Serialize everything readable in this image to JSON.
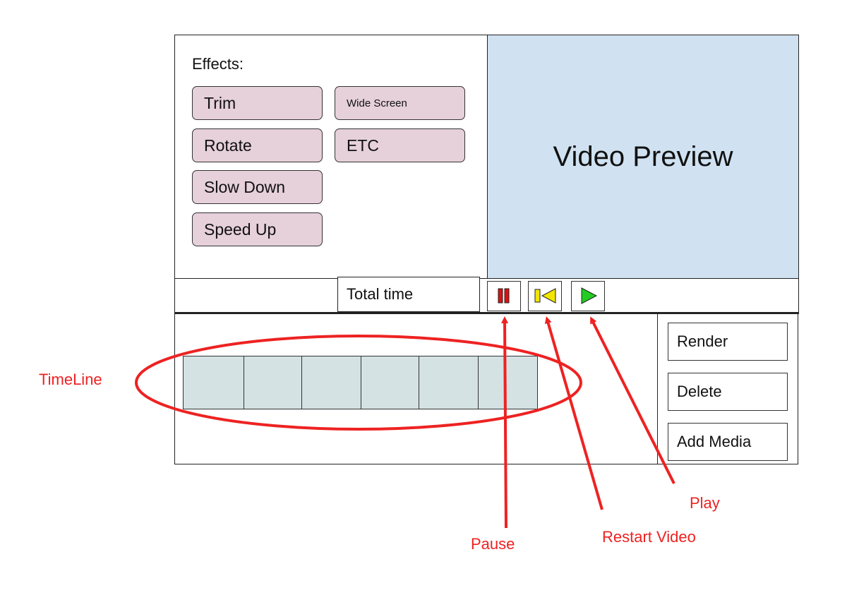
{
  "effects": {
    "label": "Effects:",
    "buttons": [
      "Trim",
      "Wide Screen",
      "Rotate",
      "ETC",
      "Slow Down",
      "Speed Up"
    ]
  },
  "preview": {
    "label": "Video Preview"
  },
  "controls": {
    "total_time_label": "Total time",
    "pause_icon": "pause-icon",
    "restart_icon": "restart-icon",
    "play_icon": "play-icon"
  },
  "timeline": {
    "frame_count": 6
  },
  "actions": {
    "render": "Render",
    "delete": "Delete",
    "add_media": "Add Media"
  },
  "annotations": {
    "timeline": "TimeLine",
    "pause": "Pause",
    "restart": "Restart Video",
    "play": "Play"
  },
  "colors": {
    "effect_button": "#e6d0da",
    "preview_bg": "#d0e2f1",
    "timeline_frame": "#d4e2e4",
    "annotation": "#ee2222",
    "pause": "#dd1111",
    "restart": "#f2e600",
    "play": "#22cc22"
  }
}
